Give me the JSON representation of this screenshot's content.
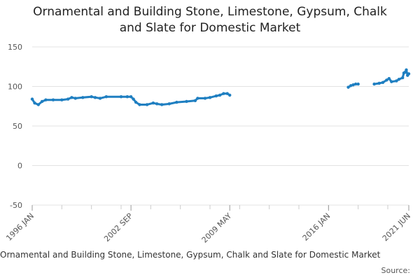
{
  "title_line1": "Ornamental and Building Stone, Limestone, Gypsum, Chalk",
  "title_line2": "and Slate for Domestic Market",
  "source_label": "Source:",
  "colors": {
    "series": "#1f7fc1",
    "grid": "#e3e3e3",
    "axis": "#cccccc"
  },
  "chart_data": {
    "type": "line",
    "title": "Ornamental and Building Stone, Limestone, Gypsum, Chalk and Slate for Domestic Market",
    "xlabel": "",
    "ylabel": "",
    "ylim": [
      -50,
      150
    ],
    "yticks": [
      150,
      100,
      50,
      0,
      -50
    ],
    "xlim": [
      "1996-01",
      "2021-06"
    ],
    "xtick_labels": [
      "1996 JAN",
      "2002 SEP",
      "2009 MAY",
      "2016 JAN",
      "2021 JUN"
    ],
    "grid": true,
    "legend": "bottom",
    "series": [
      {
        "name": "Ornamental and Building Stone, Limestone, Gypsum, Chalk and Slate for Domestic Market",
        "segments": [
          [
            [
              "1996-01",
              84
            ],
            [
              "1996-03",
              79
            ],
            [
              "1996-06",
              77
            ],
            [
              "1996-09",
              81
            ],
            [
              "1996-12",
              83
            ],
            [
              "1997-06",
              83
            ],
            [
              "1998-01",
              83
            ],
            [
              "1998-06",
              84
            ],
            [
              "1998-09",
              86
            ],
            [
              "1998-12",
              85
            ],
            [
              "1999-06",
              86
            ],
            [
              "2000-01",
              87
            ],
            [
              "2000-04",
              86
            ],
            [
              "2000-08",
              85
            ],
            [
              "2001-01",
              87
            ],
            [
              "2002-01",
              87
            ],
            [
              "2002-06",
              87
            ],
            [
              "2002-09",
              87
            ],
            [
              "2002-11",
              84
            ],
            [
              "2003-01",
              80
            ],
            [
              "2003-04",
              77
            ],
            [
              "2003-10",
              77
            ],
            [
              "2004-03",
              79
            ],
            [
              "2004-06",
              78
            ],
            [
              "2004-10",
              77
            ],
            [
              "2005-04",
              78
            ],
            [
              "2005-10",
              80
            ],
            [
              "2006-06",
              81
            ],
            [
              "2007-01",
              82
            ],
            [
              "2007-03",
              85
            ],
            [
              "2007-09",
              85
            ],
            [
              "2008-01",
              86
            ],
            [
              "2008-06",
              88
            ],
            [
              "2008-09",
              89
            ],
            [
              "2008-12",
              91
            ],
            [
              "2009-03",
              91
            ],
            [
              "2009-05",
              89
            ]
          ],
          [
            [
              "2017-05",
              99
            ],
            [
              "2017-07",
              101
            ],
            [
              "2017-09",
              102
            ],
            [
              "2017-11",
              103
            ],
            [
              "2018-01",
              103
            ]
          ],
          [
            [
              "2019-02",
              103
            ],
            [
              "2019-06",
              104
            ],
            [
              "2019-09",
              105
            ],
            [
              "2019-12",
              108
            ],
            [
              "2020-02",
              110
            ],
            [
              "2020-04",
              106
            ],
            [
              "2020-08",
              107
            ],
            [
              "2020-10",
              109
            ],
            [
              "2021-01",
              111
            ],
            [
              "2021-02",
              117
            ],
            [
              "2021-03",
              118
            ],
            [
              "2021-04",
              121
            ],
            [
              "2021-05",
              114
            ],
            [
              "2021-06",
              116
            ]
          ]
        ]
      }
    ]
  }
}
